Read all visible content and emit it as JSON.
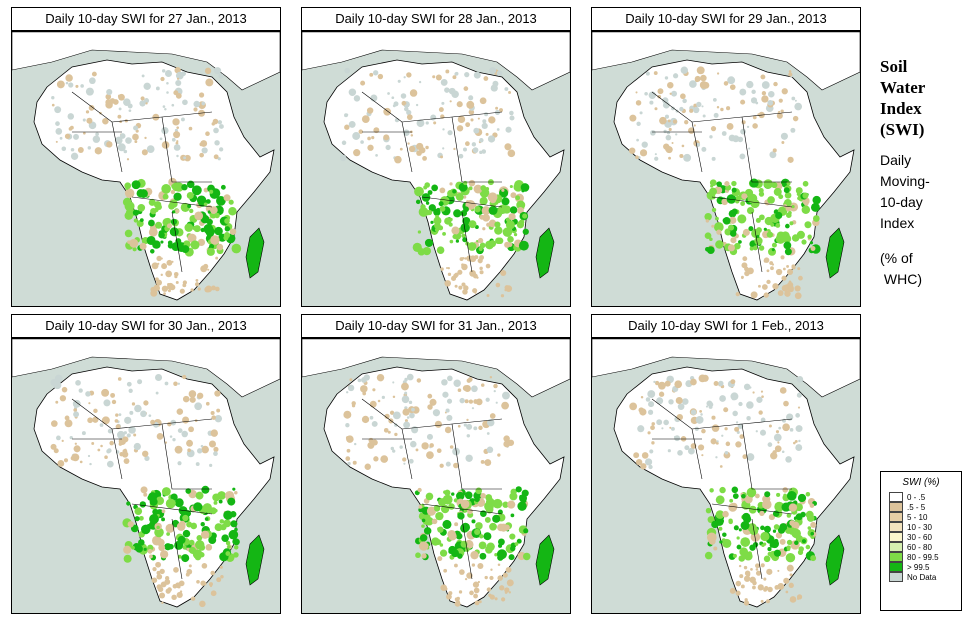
{
  "panels": [
    {
      "title": "Daily 10-day SWI for  27 Jan., 2013"
    },
    {
      "title": "Daily 10-day SWI for  28 Jan., 2013"
    },
    {
      "title": "Daily 10-day SWI for  29 Jan., 2013"
    },
    {
      "title": "Daily 10-day SWI for  30 Jan., 2013"
    },
    {
      "title": "Daily 10-day SWI for  31 Jan., 2013"
    },
    {
      "title": "Daily 10-day SWI for  1 Feb., 2013"
    }
  ],
  "side": {
    "title_lines": [
      "Soil",
      "Water",
      "Index",
      "(SWI)"
    ],
    "subtitle_lines": [
      "Daily",
      "Moving-",
      "10-day",
      "Index"
    ],
    "unit_lines": [
      "(% of",
      " WHC)"
    ]
  },
  "legend": {
    "title": "SWI (%)",
    "items": [
      {
        "label": "0 - .5",
        "color": "#ffffff"
      },
      {
        "label": ".5 - 5",
        "color": "#dcc39b"
      },
      {
        "label": "5 - 10",
        "color": "#e7cfa6"
      },
      {
        "label": "10 - 30",
        "color": "#f3e3be"
      },
      {
        "label": "30 - 60",
        "color": "#fbf6cc"
      },
      {
        "label": "60 - 80",
        "color": "#d6f0b0"
      },
      {
        "label": "80 - 99.5",
        "color": "#7edc47"
      },
      {
        "label": "> 99.5",
        "color": "#14b614"
      },
      {
        "label": "No Data",
        "color": "#c9d6d4"
      }
    ]
  },
  "colors": {
    "ocean": "#cfdcd6",
    "land": "#ffffff",
    "dry": "#dcc39b",
    "wet": "#7edc47",
    "saturated": "#14b614",
    "nodata": "#c9d6d4"
  }
}
